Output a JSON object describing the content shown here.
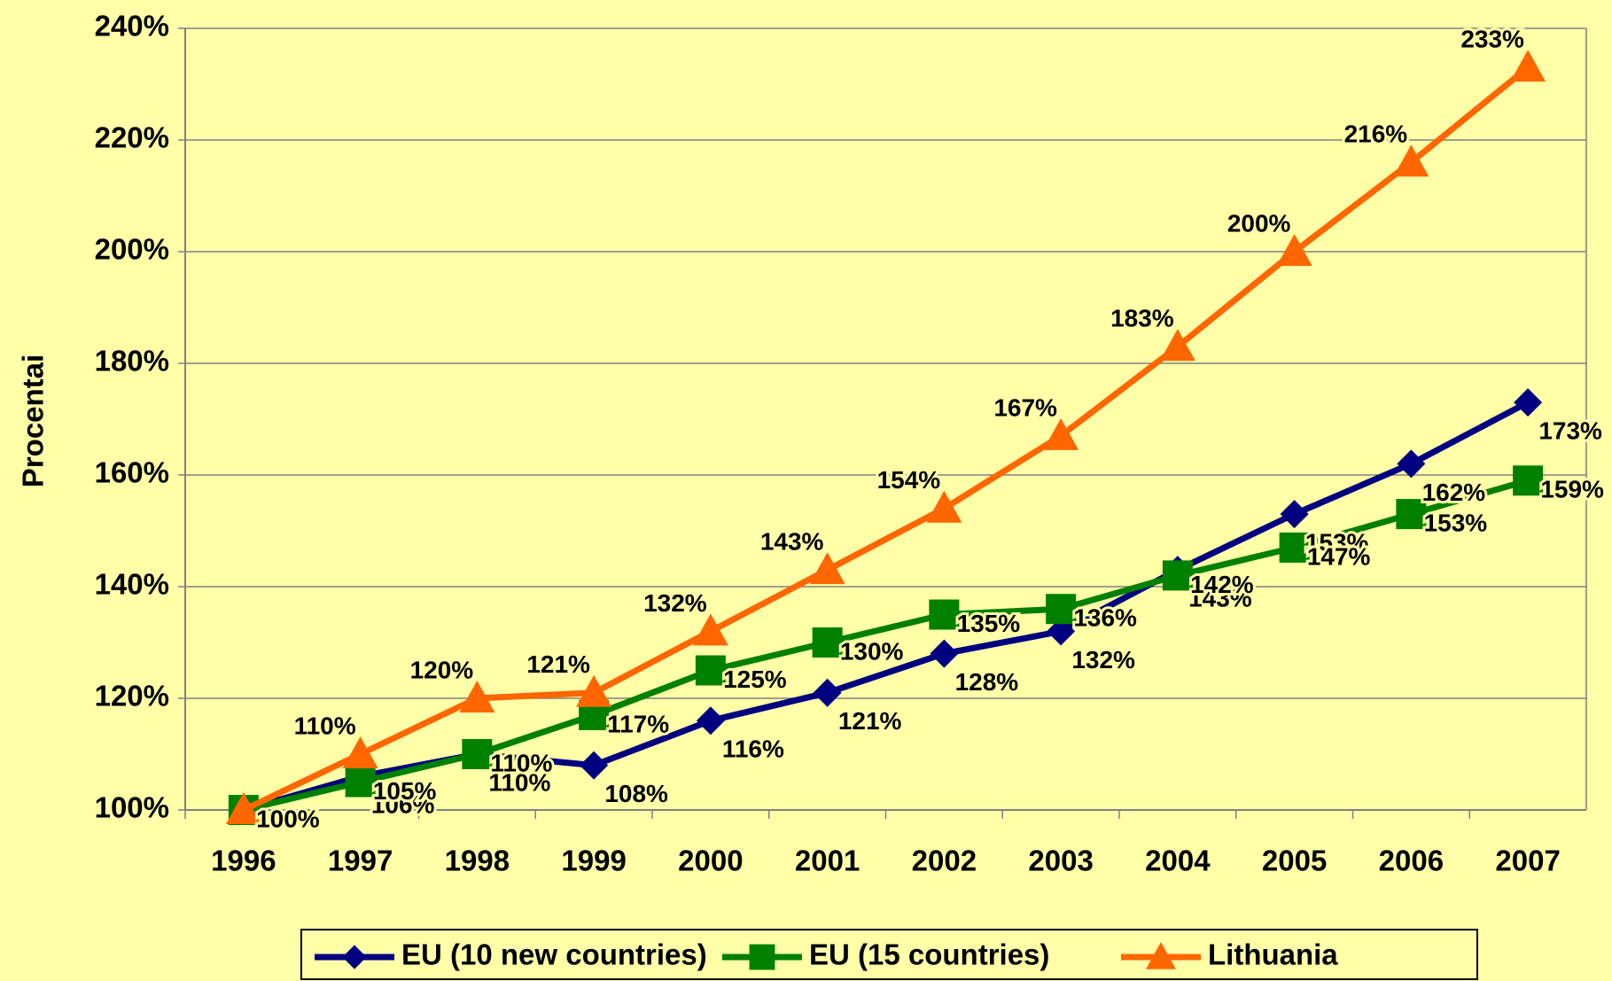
{
  "chart_data": {
    "type": "line",
    "y_label": "Procentai",
    "categories": [
      "1996",
      "1997",
      "1998",
      "1999",
      "2000",
      "2001",
      "2002",
      "2003",
      "2004",
      "2005",
      "2006",
      "2007"
    ],
    "series": [
      {
        "name": "EU (10 new countries)",
        "color": "#000080",
        "marker": "diamond",
        "values": [
          100,
          106,
          110,
          108,
          116,
          121,
          128,
          132,
          143,
          153,
          162,
          173
        ],
        "value_labels": [
          null,
          "106%",
          "110%",
          "108%",
          "116%",
          "121%",
          "128%",
          "132%",
          "143%",
          "153%",
          "162%",
          "173%"
        ]
      },
      {
        "name": "EU (15 countries)",
        "color": "#008000",
        "marker": "square",
        "values": [
          100,
          105,
          110,
          117,
          125,
          130,
          135,
          136,
          142,
          147,
          153,
          159
        ],
        "value_labels": [
          "100%",
          "105%",
          "110%",
          "117%",
          "125%",
          "130%",
          "135%",
          "136%",
          "142%",
          "147%",
          "153%",
          "159%"
        ]
      },
      {
        "name": "Lithuania",
        "color": "#ff6600",
        "marker": "triangle",
        "values": [
          100,
          110,
          120,
          121,
          132,
          143,
          154,
          167,
          183,
          200,
          216,
          233
        ],
        "value_labels": [
          null,
          "110%",
          "120%",
          "121%",
          "132%",
          "143%",
          "154%",
          "167%",
          "183%",
          "200%",
          "216%",
          "233%"
        ]
      }
    ],
    "ylim": [
      100,
      240
    ],
    "yticks": [
      {
        "value": 100,
        "label": "100%"
      },
      {
        "value": 120,
        "label": "120%"
      },
      {
        "value": 140,
        "label": "140%"
      },
      {
        "value": 160,
        "label": "160%"
      },
      {
        "value": 180,
        "label": "180%"
      },
      {
        "value": 200,
        "label": "200%"
      },
      {
        "value": 220,
        "label": "220%"
      },
      {
        "value": 240,
        "label": "240%"
      }
    ],
    "grid": true,
    "legend": "bottom"
  }
}
